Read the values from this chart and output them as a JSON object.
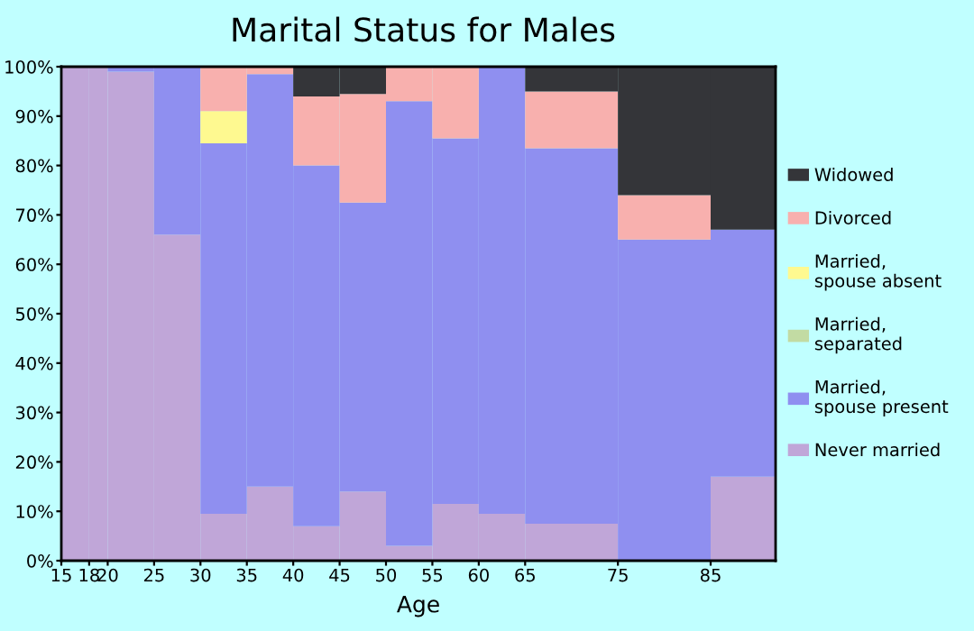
{
  "chart_data": {
    "type": "bar",
    "stacked": true,
    "title": "Marital Status for Males",
    "xlabel": "Age",
    "x": [
      16.5,
      19,
      22.5,
      27.5,
      32.5,
      37.5,
      42.5,
      47.5,
      52.5,
      57.5,
      62.5,
      70,
      80,
      88.5
    ],
    "xlim": [
      15,
      92
    ],
    "xticks": [
      15,
      18,
      20,
      25,
      30,
      35,
      40,
      45,
      50,
      55,
      60,
      65,
      75,
      85
    ],
    "ylim": [
      0,
      100
    ],
    "yticks": [
      {
        "value": 0,
        "label": "0%"
      },
      {
        "value": 10,
        "label": "10%"
      },
      {
        "value": 20,
        "label": "20%"
      },
      {
        "value": 30,
        "label": "30%"
      },
      {
        "value": 40,
        "label": "40%"
      },
      {
        "value": 50,
        "label": "50%"
      },
      {
        "value": 60,
        "label": "60%"
      },
      {
        "value": 70,
        "label": "70%"
      },
      {
        "value": 80,
        "label": "80%"
      },
      {
        "value": 90,
        "label": "90%"
      },
      {
        "value": 100,
        "label": "100%"
      }
    ],
    "grid": false,
    "legend": "right",
    "series": [
      {
        "name": "Never married",
        "color": "#c0a6d8",
        "values": [
          100,
          100,
          99,
          66,
          9.5,
          15,
          7,
          14,
          3,
          11.5,
          9.5,
          7.5,
          0,
          17
        ]
      },
      {
        "name": "Married,\nspouse present",
        "color": "#8f8ff0",
        "values": [
          0,
          0,
          1,
          34,
          75,
          83.5,
          73,
          58.5,
          90,
          74,
          90.5,
          76,
          65,
          50
        ]
      },
      {
        "name": "Married,\nseparated",
        "color": "#c2dba3",
        "values": [
          0,
          0,
          0,
          0,
          0,
          0,
          0,
          0,
          0,
          0,
          0,
          0,
          0,
          0
        ]
      },
      {
        "name": "Married,\nspouse absent",
        "color": "#fef990",
        "values": [
          0,
          0,
          0,
          0,
          6.5,
          0,
          0,
          0,
          0,
          0,
          0,
          0,
          0,
          0
        ]
      },
      {
        "name": "Divorced",
        "color": "#f8b0ae",
        "values": [
          0,
          0,
          0,
          0,
          9,
          1.5,
          14,
          22,
          7,
          14.5,
          0,
          11.5,
          9,
          0
        ]
      },
      {
        "name": "Widowed",
        "color": "#343539",
        "values": [
          0,
          0,
          0,
          0,
          0,
          0,
          6,
          5.5,
          0,
          0,
          0,
          5,
          26,
          33
        ]
      }
    ]
  }
}
